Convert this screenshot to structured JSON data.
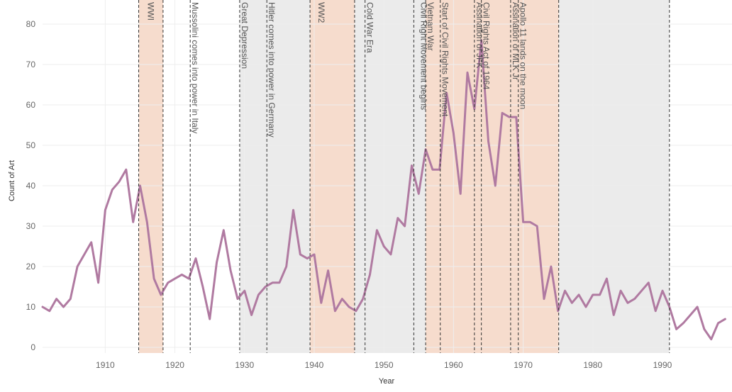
{
  "chart_data": {
    "type": "line",
    "xlabel": "Year",
    "ylabel": "Count of Art",
    "xlim": [
      1901,
      1999
    ],
    "ylim": [
      -1,
      85
    ],
    "x_ticks": [
      1910,
      1920,
      1930,
      1940,
      1950,
      1960,
      1970,
      1980,
      1990
    ],
    "y_ticks": [
      0,
      10,
      20,
      30,
      40,
      50,
      60,
      70,
      80
    ],
    "grid": true,
    "colors": {
      "line": "#b07aa1",
      "band_war": "#f6dccd",
      "band_gray": "#ebebeb",
      "event_line": "#333333",
      "grid": "#eeeeee"
    },
    "series": [
      {
        "x": [
          1901,
          1902,
          1903,
          1904,
          1905,
          1906,
          1907,
          1908,
          1909,
          1910,
          1911,
          1912,
          1913,
          1914,
          1915,
          1916,
          1917,
          1918,
          1919,
          1920,
          1921,
          1922,
          1923,
          1924,
          1925,
          1926,
          1927,
          1928,
          1929,
          1930,
          1931,
          1932,
          1933,
          1934,
          1935,
          1936,
          1937,
          1938,
          1939,
          1940,
          1941,
          1942,
          1943,
          1944,
          1945,
          1946,
          1947,
          1948,
          1949,
          1950,
          1951,
          1952,
          1953,
          1954,
          1955,
          1956,
          1957,
          1958,
          1959,
          1960,
          1961,
          1962,
          1963,
          1964,
          1965,
          1966,
          1967,
          1968,
          1969,
          1970,
          1971,
          1972,
          1973,
          1974,
          1975,
          1976,
          1977,
          1978,
          1979,
          1980,
          1981,
          1982,
          1983,
          1984,
          1985,
          1986,
          1987,
          1988,
          1989,
          1990,
          1991,
          1992,
          1993,
          1994,
          1995,
          1996,
          1997,
          1998,
          1999
        ],
        "values": [
          10,
          9,
          12,
          10,
          12,
          20,
          23,
          26,
          16,
          34,
          39,
          41,
          44,
          31,
          40,
          31,
          17,
          13,
          16,
          17,
          18,
          17,
          22,
          15,
          7,
          21,
          29,
          19,
          12,
          14,
          8,
          13,
          15,
          16,
          16,
          20,
          34,
          23,
          22,
          23,
          11,
          19,
          9,
          12,
          10,
          9,
          12,
          18,
          29,
          25,
          23,
          32,
          30,
          45,
          38,
          49,
          44,
          44,
          63,
          53,
          38,
          68,
          59,
          76,
          51,
          40,
          58,
          57,
          57,
          31,
          31,
          30,
          12,
          20,
          9,
          14,
          11,
          13,
          10,
          13,
          13,
          17,
          8,
          14,
          11,
          12,
          14,
          16,
          9,
          14,
          10,
          4.5,
          6,
          8,
          10,
          4.5,
          2,
          6,
          7
        ]
      }
    ],
    "bands": [
      {
        "start": 1914.8,
        "end": 1918.3,
        "color": "band_war"
      },
      {
        "start": 1929.3,
        "end": 1939.4,
        "color": "band_gray"
      },
      {
        "start": 1939.4,
        "end": 1945.8,
        "color": "band_war"
      },
      {
        "start": 1945.8,
        "end": 1956.0,
        "color": "band_gray"
      },
      {
        "start": 1956.0,
        "end": 1975.1,
        "color": "band_war"
      },
      {
        "start": 1975.1,
        "end": 1991.0,
        "color": "band_gray"
      }
    ],
    "events": [
      {
        "year": 1914.8,
        "label": ""
      },
      {
        "year": 1918.3,
        "label": "WWI",
        "label_at": 1915.8
      },
      {
        "year": 1922.2,
        "label": "Mussolini comes into power in Italy"
      },
      {
        "year": 1929.3,
        "label": "Great Depression"
      },
      {
        "year": 1933.2,
        "label": "Hitler comes into power in Germany"
      },
      {
        "year": 1939.4,
        "label": ""
      },
      {
        "year": 1945.8,
        "label": "WW2",
        "label_at": 1940.3
      },
      {
        "year": 1947.3,
        "label": "Cold War Era"
      },
      {
        "year": 1954.3,
        "label": "Civil Right Movement begins",
        "label_at": 1955.0
      },
      {
        "year": 1956.0,
        "label": "Vietnam War"
      },
      {
        "year": 1958.1,
        "label": "Start of Civil Rights Movement"
      },
      {
        "year": 1963.0,
        "label": "Assination of JFK"
      },
      {
        "year": 1964.0,
        "label": "Civil Rights Act of 1964"
      },
      {
        "year": 1968.2,
        "label": "Assination of MLK Jr"
      },
      {
        "year": 1969.3,
        "label": "Apollo 11 lands on the moon"
      },
      {
        "year": 1975.1,
        "label": ""
      },
      {
        "year": 1991.0,
        "label": ""
      }
    ]
  }
}
